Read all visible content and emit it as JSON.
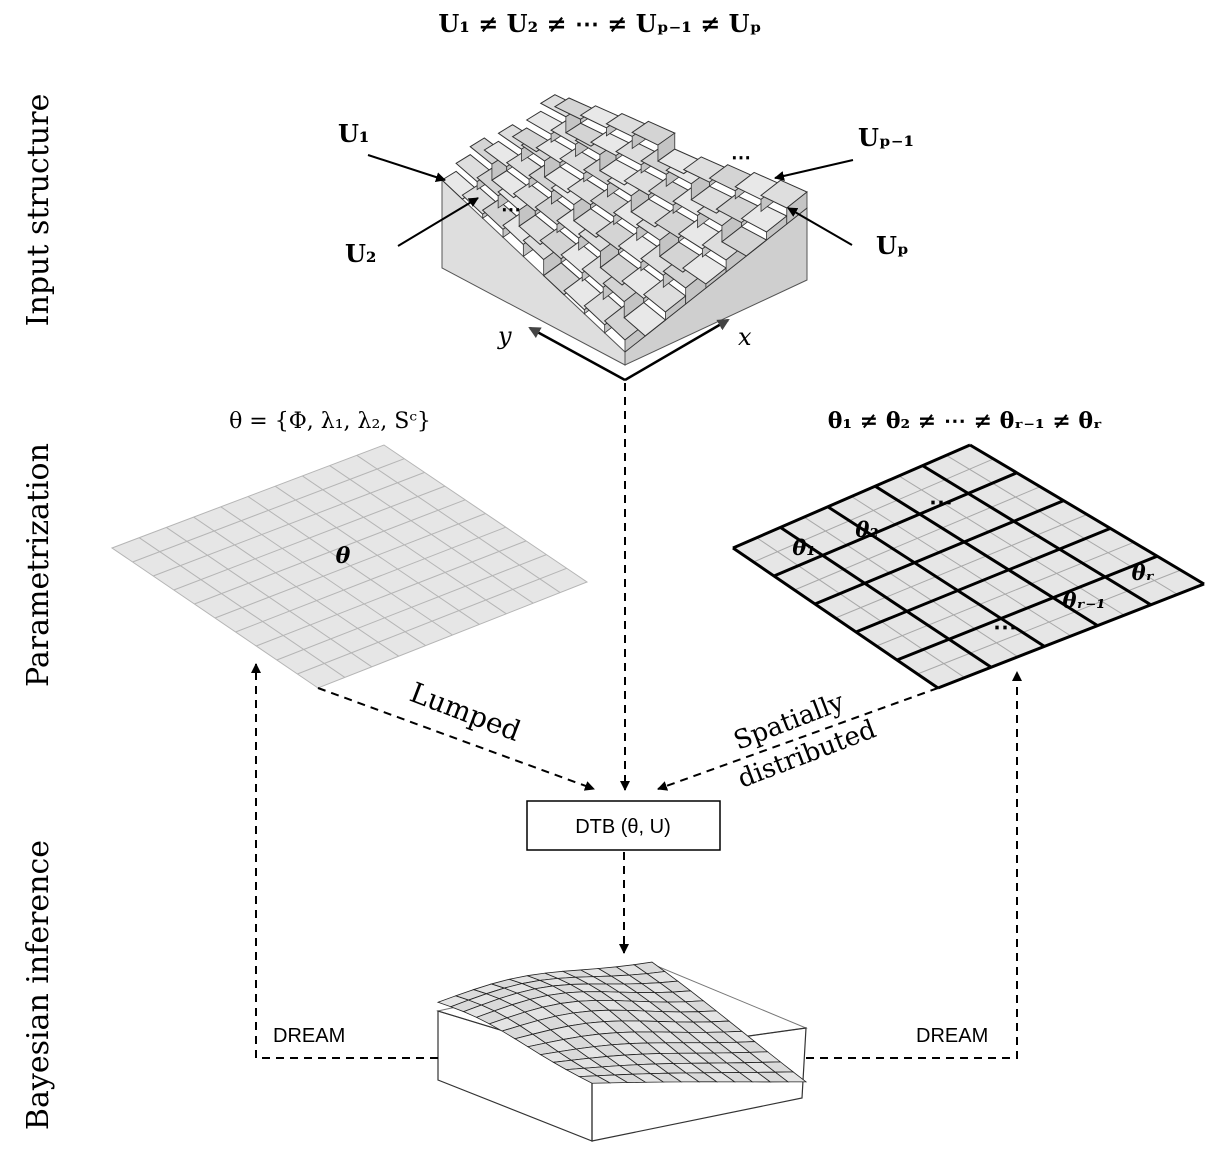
{
  "rows": {
    "input": "Input structure",
    "param": "Parametrization",
    "bayes": "Bayesian inference"
  },
  "input_structure": {
    "equation": "U₁ ≠ U₂ ≠ ⋯ ≠ Uₚ₋₁ ≠ Uₚ",
    "labels": {
      "u1": "U₁",
      "u2": "U₂",
      "up1": "Uₚ₋₁",
      "up": "Uₚ",
      "ellipsis": "⋯"
    },
    "axes": {
      "x": "x",
      "y": "y"
    }
  },
  "lumped": {
    "equation": "θ = {Φ, λ₁, λ₂, Sᶜ}",
    "grid_label": "θ",
    "arrow_label": "Lumped"
  },
  "distributed": {
    "equation": "θ₁ ≠ θ₂ ≠ ⋯ ≠ θᵣ₋₁ ≠ θᵣ",
    "cells": [
      "θ₁",
      "θ₂",
      "⋯",
      "⋯",
      "θᵣ₋₁",
      "θᵣ"
    ],
    "arrow_label_1": "Spatially",
    "arrow_label_2": "distributed"
  },
  "model_box": {
    "label": "DTB (θ, U)"
  },
  "dream": {
    "left": "DREAM",
    "right": "DREAM"
  }
}
